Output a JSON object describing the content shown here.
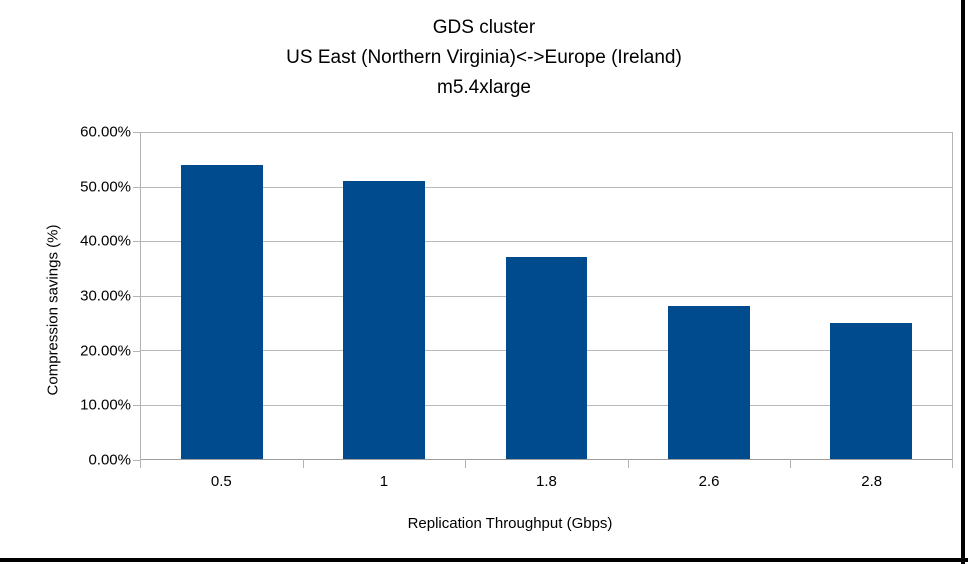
{
  "frame": {
    "border_color": "#000000"
  },
  "chart_data": {
    "type": "bar",
    "title_lines": [
      "GDS cluster",
      "US East (Northern Virginia)<->Europe (Ireland)",
      "m5.4xlarge"
    ],
    "categories": [
      "0.5",
      "1",
      "1.8",
      "2.6",
      "2.8"
    ],
    "values": [
      54,
      51,
      37,
      28,
      25
    ],
    "value_unit": "percent",
    "xlabel": "Replication Throughput (Gbps)",
    "ylabel": "Compression savings (%)",
    "ylim": [
      0,
      60
    ],
    "ytick_step": 10,
    "ytick_labels": [
      "0.00%",
      "10.00%",
      "20.00%",
      "30.00%",
      "40.00%",
      "50.00%",
      "60.00%"
    ],
    "grid": true,
    "legend": "none",
    "colors": {
      "bar": "#004b8d",
      "gridline": "#b9b9b9",
      "axis": "#b3b3b3",
      "text": "#000000"
    }
  }
}
